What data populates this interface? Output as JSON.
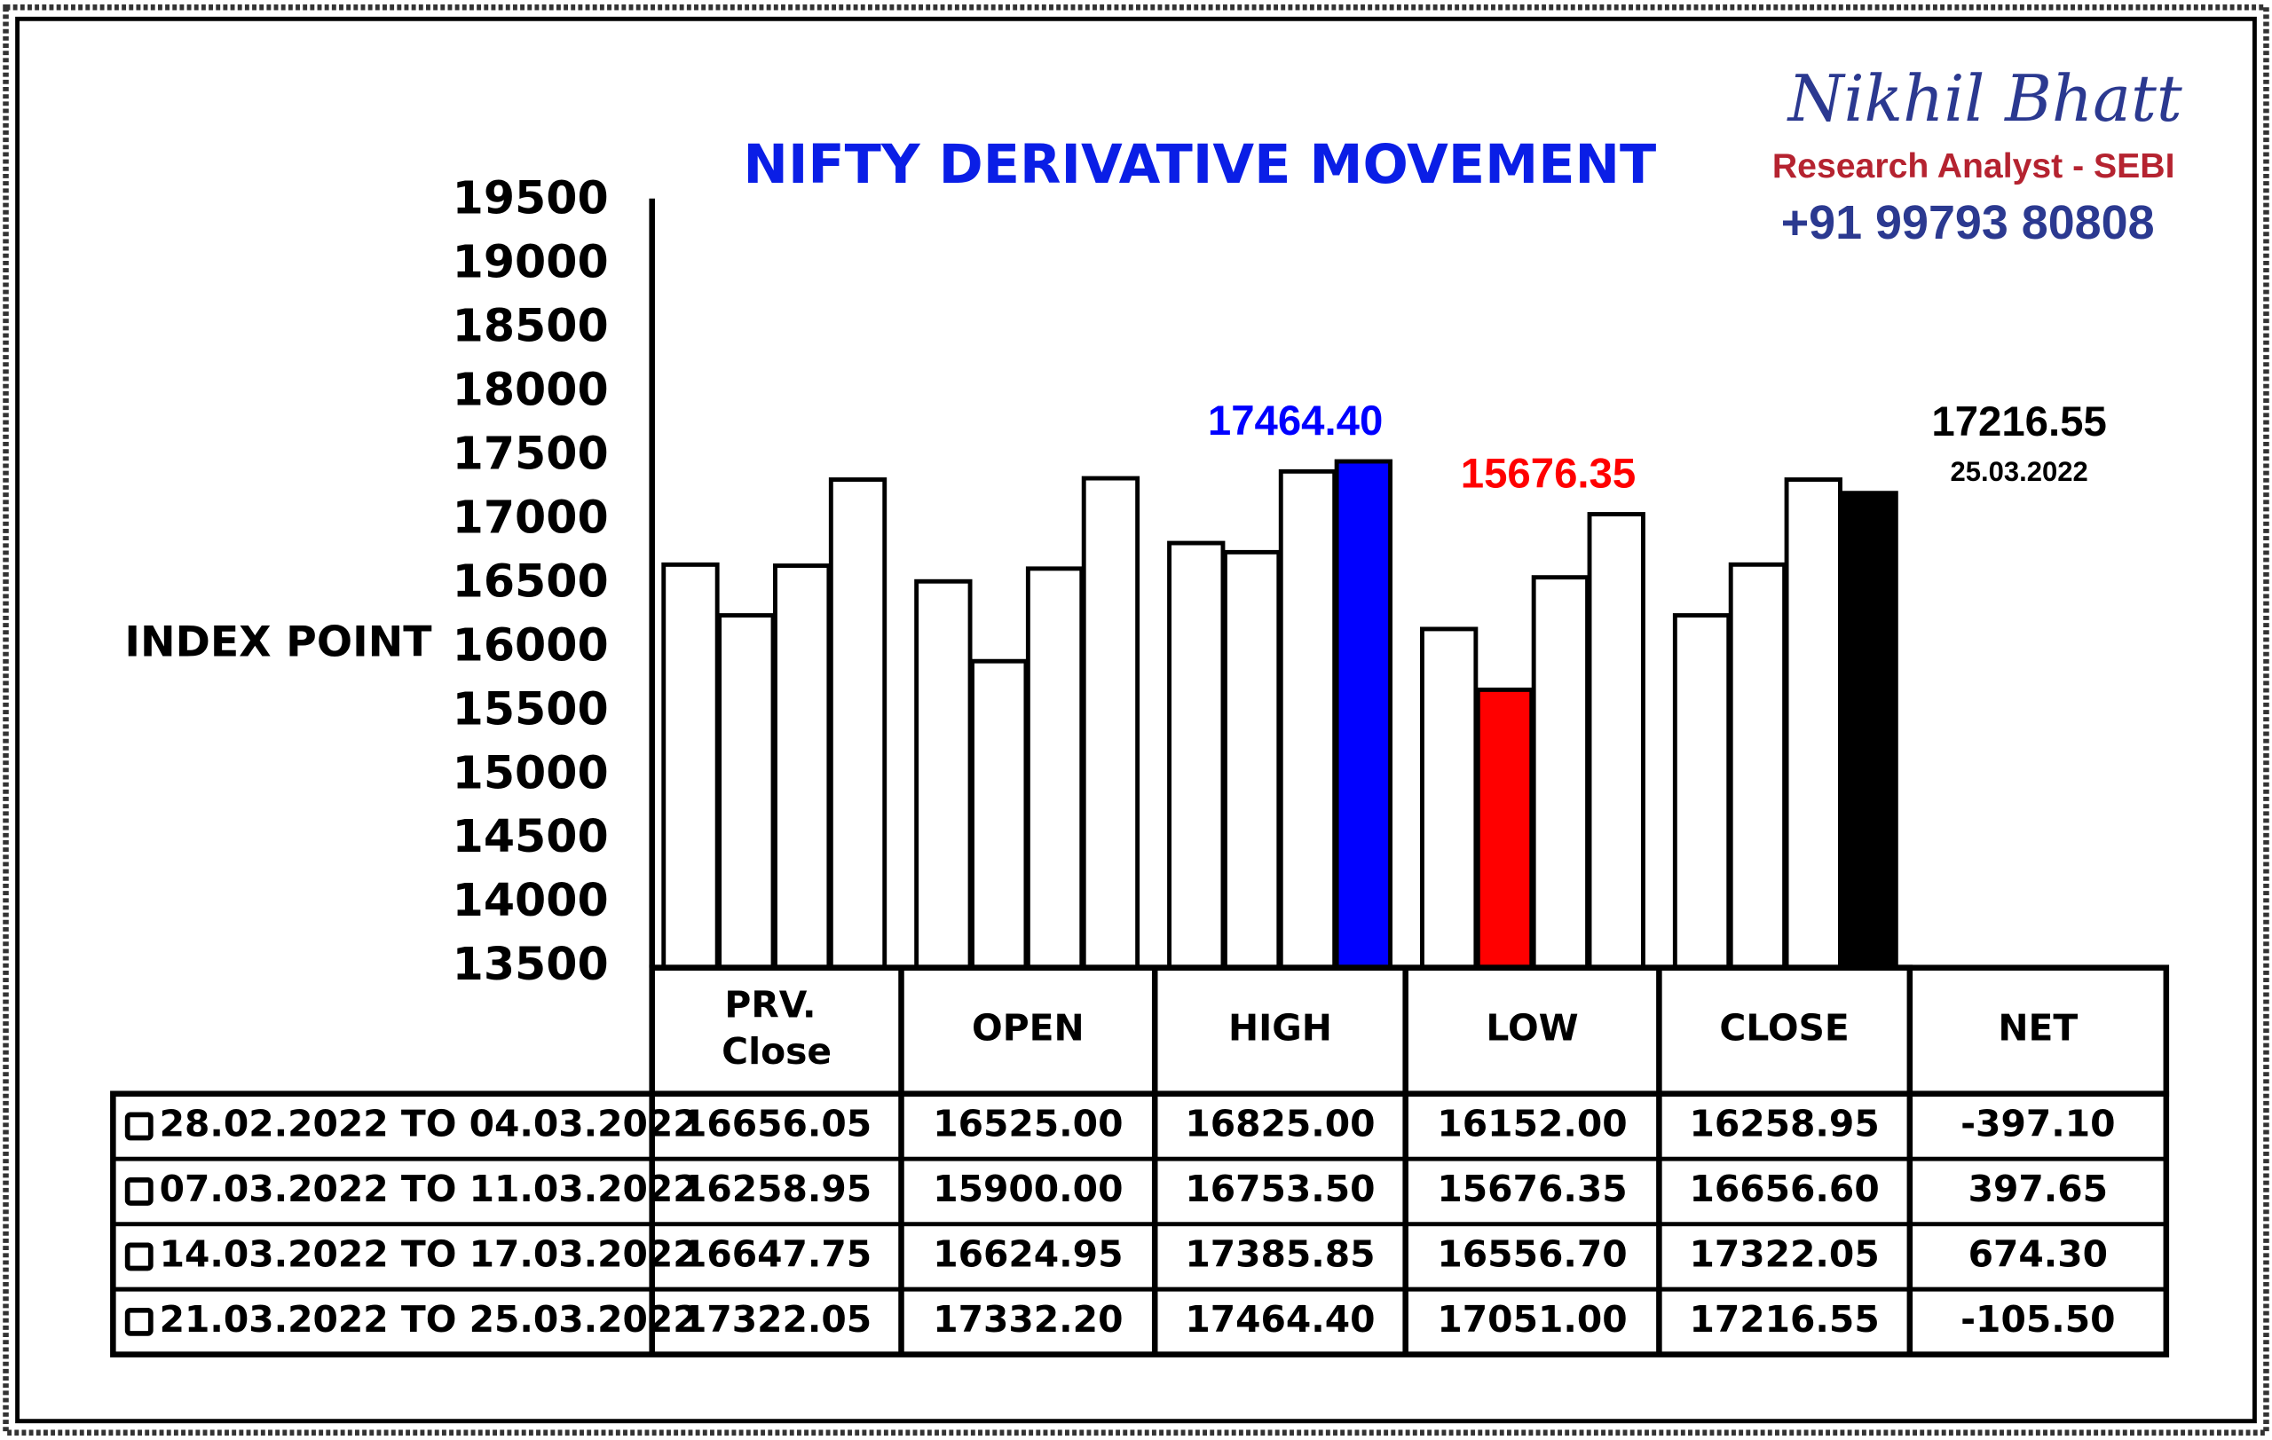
{
  "chart_data": {
    "type": "bar",
    "title": "NIFTY DERIVATIVE MOVEMENT",
    "ylabel": "INDEX POINT",
    "ylim": [
      13500,
      19500
    ],
    "yticks": [
      13500,
      14000,
      14500,
      15000,
      15500,
      16000,
      16500,
      17000,
      17500,
      18000,
      18500,
      19000,
      19500
    ],
    "grid": false,
    "series": [
      {
        "name": "28.02.2022 TO 04.03.2022",
        "color": "#ffffff",
        "colors": [
          "#ffffff",
          "#ffffff",
          "#ffffff",
          "#ffffff",
          "#ffffff"
        ],
        "values": [
          16656.05,
          16525.0,
          16825.0,
          16152.0,
          16258.95
        ],
        "value_labels": [
          null,
          null,
          null,
          null,
          null
        ]
      },
      {
        "name": "07.03.2022 TO 11.03.2022",
        "color": "#ffffff",
        "colors": [
          "#ffffff",
          "#ffffff",
          "#ffffff",
          "#ff0000",
          "#ffffff"
        ],
        "values": [
          16258.95,
          15900.0,
          16753.5,
          15676.35,
          16656.6
        ],
        "value_labels": [
          null,
          null,
          null,
          "15676.35",
          null
        ]
      },
      {
        "name": "14.03.2022 TO 17.03.2022",
        "color": "#ffffff",
        "colors": [
          "#ffffff",
          "#ffffff",
          "#ffffff",
          "#ffffff",
          "#ffffff"
        ],
        "values": [
          16647.75,
          16624.95,
          17385.85,
          16556.7,
          17322.05
        ],
        "value_labels": [
          null,
          null,
          null,
          null,
          null
        ]
      },
      {
        "name": "21.03.2022 TO 25.03.2022",
        "color": "#ffffff",
        "colors": [
          "#ffffff",
          "#ffffff",
          "#0000ff",
          "#ffffff",
          "#000000"
        ],
        "values": [
          17322.05,
          17332.2,
          17464.4,
          17051.0,
          17216.55
        ],
        "value_labels": [
          null,
          null,
          "17464.40",
          null,
          "17216.55"
        ]
      }
    ],
    "annotations": [
      {
        "text": "25.03.2022"
      }
    ]
  },
  "table": {
    "columns": [
      "PRV. Close",
      "OPEN",
      "HIGH",
      "LOW",
      "CLOSE",
      "NET"
    ],
    "rows": [
      [
        "16656.05",
        "16525.00",
        "16825.00",
        "16152.00",
        "16258.95",
        "-397.10"
      ],
      [
        "16258.95",
        "15900.00",
        "16753.50",
        "15676.35",
        "16656.60",
        "397.65"
      ],
      [
        "16647.75",
        "16624.95",
        "17385.85",
        "16556.70",
        "17322.05",
        "674.30"
      ],
      [
        "17322.05",
        "17332.20",
        "17464.40",
        "17051.00",
        "17216.55",
        "-105.50"
      ]
    ]
  },
  "header": {
    "name": "Nikhil Bhatt",
    "role": "Research Analyst - SEBI",
    "phone": "+91 99793 80808"
  }
}
